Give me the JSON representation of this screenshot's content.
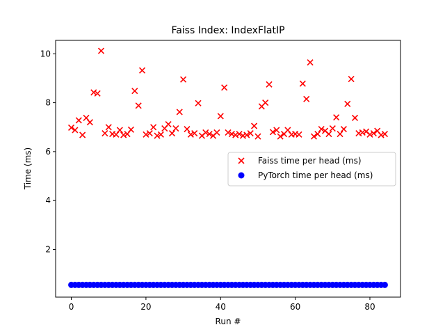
{
  "chart_data": {
    "type": "scatter",
    "title": "Faiss Index: IndexFlatIP",
    "xlabel": "Run #",
    "ylabel": "Time (ms)",
    "xlim": [
      -4.2,
      88.2
    ],
    "ylim": [
      0.05,
      10.55
    ],
    "xticks": [
      0,
      20,
      40,
      60,
      80
    ],
    "yticks": [
      2,
      4,
      6,
      8,
      10
    ],
    "grid": false,
    "legend_position": "center-right",
    "series": [
      {
        "name": "Faiss time per head (ms)",
        "marker": "x",
        "color": "#ff0000",
        "x": [
          0,
          1,
          2,
          3,
          4,
          5,
          6,
          7,
          8,
          9,
          10,
          11,
          12,
          13,
          14,
          15,
          16,
          17,
          18,
          19,
          20,
          21,
          22,
          23,
          24,
          25,
          26,
          27,
          28,
          29,
          30,
          31,
          32,
          33,
          34,
          35,
          36,
          37,
          38,
          39,
          40,
          41,
          42,
          43,
          44,
          45,
          46,
          47,
          48,
          49,
          50,
          51,
          52,
          53,
          54,
          55,
          56,
          57,
          58,
          59,
          60,
          61,
          62,
          63,
          64,
          65,
          66,
          67,
          68,
          69,
          70,
          71,
          72,
          73,
          74,
          75,
          76,
          77,
          78,
          79,
          80,
          81,
          82,
          83,
          84
        ],
        "y": [
          6.98,
          6.88,
          7.28,
          6.68,
          7.38,
          7.2,
          8.42,
          8.38,
          10.12,
          6.75,
          7.0,
          6.72,
          6.7,
          6.88,
          6.68,
          6.72,
          6.9,
          8.48,
          7.88,
          9.32,
          6.7,
          6.75,
          7.0,
          6.65,
          6.7,
          6.95,
          7.12,
          6.75,
          6.95,
          7.62,
          8.95,
          6.92,
          6.7,
          6.75,
          7.98,
          6.65,
          6.78,
          6.72,
          6.65,
          6.78,
          7.45,
          8.62,
          6.78,
          6.72,
          6.68,
          6.72,
          6.65,
          6.68,
          6.75,
          7.05,
          6.62,
          7.85,
          8.0,
          8.75,
          6.8,
          6.88,
          6.62,
          6.72,
          6.88,
          6.7,
          6.72,
          6.7,
          8.78,
          8.15,
          9.65,
          6.62,
          6.72,
          6.92,
          6.85,
          6.72,
          6.95,
          7.4,
          6.72,
          6.92,
          7.95,
          8.97,
          7.38,
          6.75,
          6.78,
          6.82,
          6.7,
          6.75,
          6.85,
          6.68,
          6.72
        ]
      },
      {
        "name": "PyTorch time per head (ms)",
        "marker": "o",
        "color": "#0000ff",
        "x": [
          0,
          1,
          2,
          3,
          4,
          5,
          6,
          7,
          8,
          9,
          10,
          11,
          12,
          13,
          14,
          15,
          16,
          17,
          18,
          19,
          20,
          21,
          22,
          23,
          24,
          25,
          26,
          27,
          28,
          29,
          30,
          31,
          32,
          33,
          34,
          35,
          36,
          37,
          38,
          39,
          40,
          41,
          42,
          43,
          44,
          45,
          46,
          47,
          48,
          49,
          50,
          51,
          52,
          53,
          54,
          55,
          56,
          57,
          58,
          59,
          60,
          61,
          62,
          63,
          64,
          65,
          66,
          67,
          68,
          69,
          70,
          71,
          72,
          73,
          74,
          75,
          76,
          77,
          78,
          79,
          80,
          81,
          82,
          83,
          84
        ],
        "y": [
          0.55,
          0.55,
          0.55,
          0.55,
          0.55,
          0.55,
          0.55,
          0.55,
          0.55,
          0.55,
          0.55,
          0.55,
          0.55,
          0.55,
          0.55,
          0.55,
          0.55,
          0.55,
          0.55,
          0.55,
          0.55,
          0.55,
          0.55,
          0.55,
          0.55,
          0.55,
          0.55,
          0.55,
          0.55,
          0.55,
          0.55,
          0.55,
          0.55,
          0.55,
          0.55,
          0.55,
          0.55,
          0.55,
          0.55,
          0.55,
          0.55,
          0.55,
          0.55,
          0.55,
          0.55,
          0.55,
          0.55,
          0.55,
          0.55,
          0.55,
          0.55,
          0.55,
          0.55,
          0.55,
          0.55,
          0.55,
          0.55,
          0.55,
          0.55,
          0.55,
          0.55,
          0.55,
          0.55,
          0.55,
          0.55,
          0.55,
          0.55,
          0.55,
          0.55,
          0.55,
          0.55,
          0.55,
          0.55,
          0.55,
          0.55,
          0.55,
          0.55,
          0.55,
          0.55,
          0.55,
          0.55,
          0.55,
          0.55,
          0.55,
          0.55
        ]
      }
    ]
  }
}
